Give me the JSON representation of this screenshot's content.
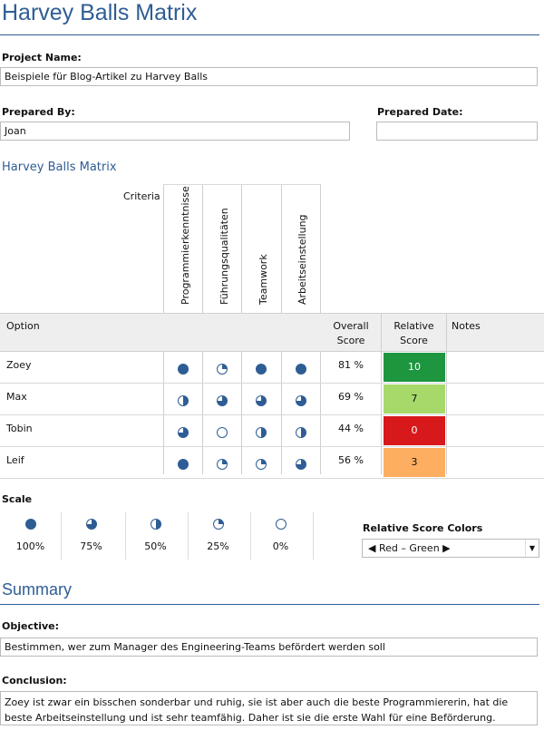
{
  "title": "Harvey Balls Matrix",
  "project": {
    "label": "Project Name:",
    "value": "Beispiele für Blog-Artikel zu Harvey Balls"
  },
  "prepared_by": {
    "label": "Prepared By:",
    "value": "Joan"
  },
  "prepared_date": {
    "label": "Prepared Date:",
    "value": ""
  },
  "matrix_title": "Harvey Balls Matrix",
  "criteria_label": "Criteria",
  "criteria": [
    "Programmierkenntnisse",
    "Führungsqualitäten",
    "Teamwork",
    "Arbeitseinstellung"
  ],
  "columns": {
    "option": "Option",
    "overall_line1": "Overall",
    "overall_line2": "Score",
    "relative_line1": "Relative",
    "relative_line2": "Score",
    "notes": "Notes"
  },
  "rows": [
    {
      "name": "Zoey",
      "balls": [
        100,
        25,
        100,
        100
      ],
      "overall": "81 %",
      "relative": "10",
      "color": "#1e9640",
      "notes": ""
    },
    {
      "name": "Max",
      "balls": [
        50,
        75,
        75,
        75
      ],
      "overall": "69 %",
      "relative": "7",
      "color": "#a6d96a",
      "notes": ""
    },
    {
      "name": "Tobin",
      "balls": [
        75,
        0,
        50,
        50
      ],
      "overall": "44 %",
      "relative": "0",
      "color": "#d7191c",
      "notes": ""
    },
    {
      "name": "Leif",
      "balls": [
        100,
        25,
        25,
        75
      ],
      "overall": "56 %",
      "relative": "3",
      "color": "#fdae61",
      "notes": ""
    }
  ],
  "scale": {
    "label": "Scale",
    "items": [
      {
        "value": 100,
        "label": "100%"
      },
      {
        "value": 75,
        "label": "75%"
      },
      {
        "value": 50,
        "label": "50%"
      },
      {
        "value": 25,
        "label": "25%"
      },
      {
        "value": 0,
        "label": "0%"
      }
    ]
  },
  "relative_colors": {
    "label": "Relative Score Colors",
    "selected": "◀ Red – Green ▶"
  },
  "summary": {
    "title": "Summary",
    "objective_label": "Objective:",
    "objective": "Bestimmen, wer zum Manager des Engineering-Teams befördert werden soll",
    "conclusion_label": "Conclusion:",
    "conclusion": "Zoey ist zwar ein bisschen sonderbar und ruhig, sie ist aber auch die beste Programmiererin, hat die beste Arbeitseinstellung und ist sehr teamfähig. Daher ist sie die erste Wahl für eine Beförderung."
  },
  "colors": {
    "accent": "#2e5d95",
    "ball": "#2e5d95"
  }
}
